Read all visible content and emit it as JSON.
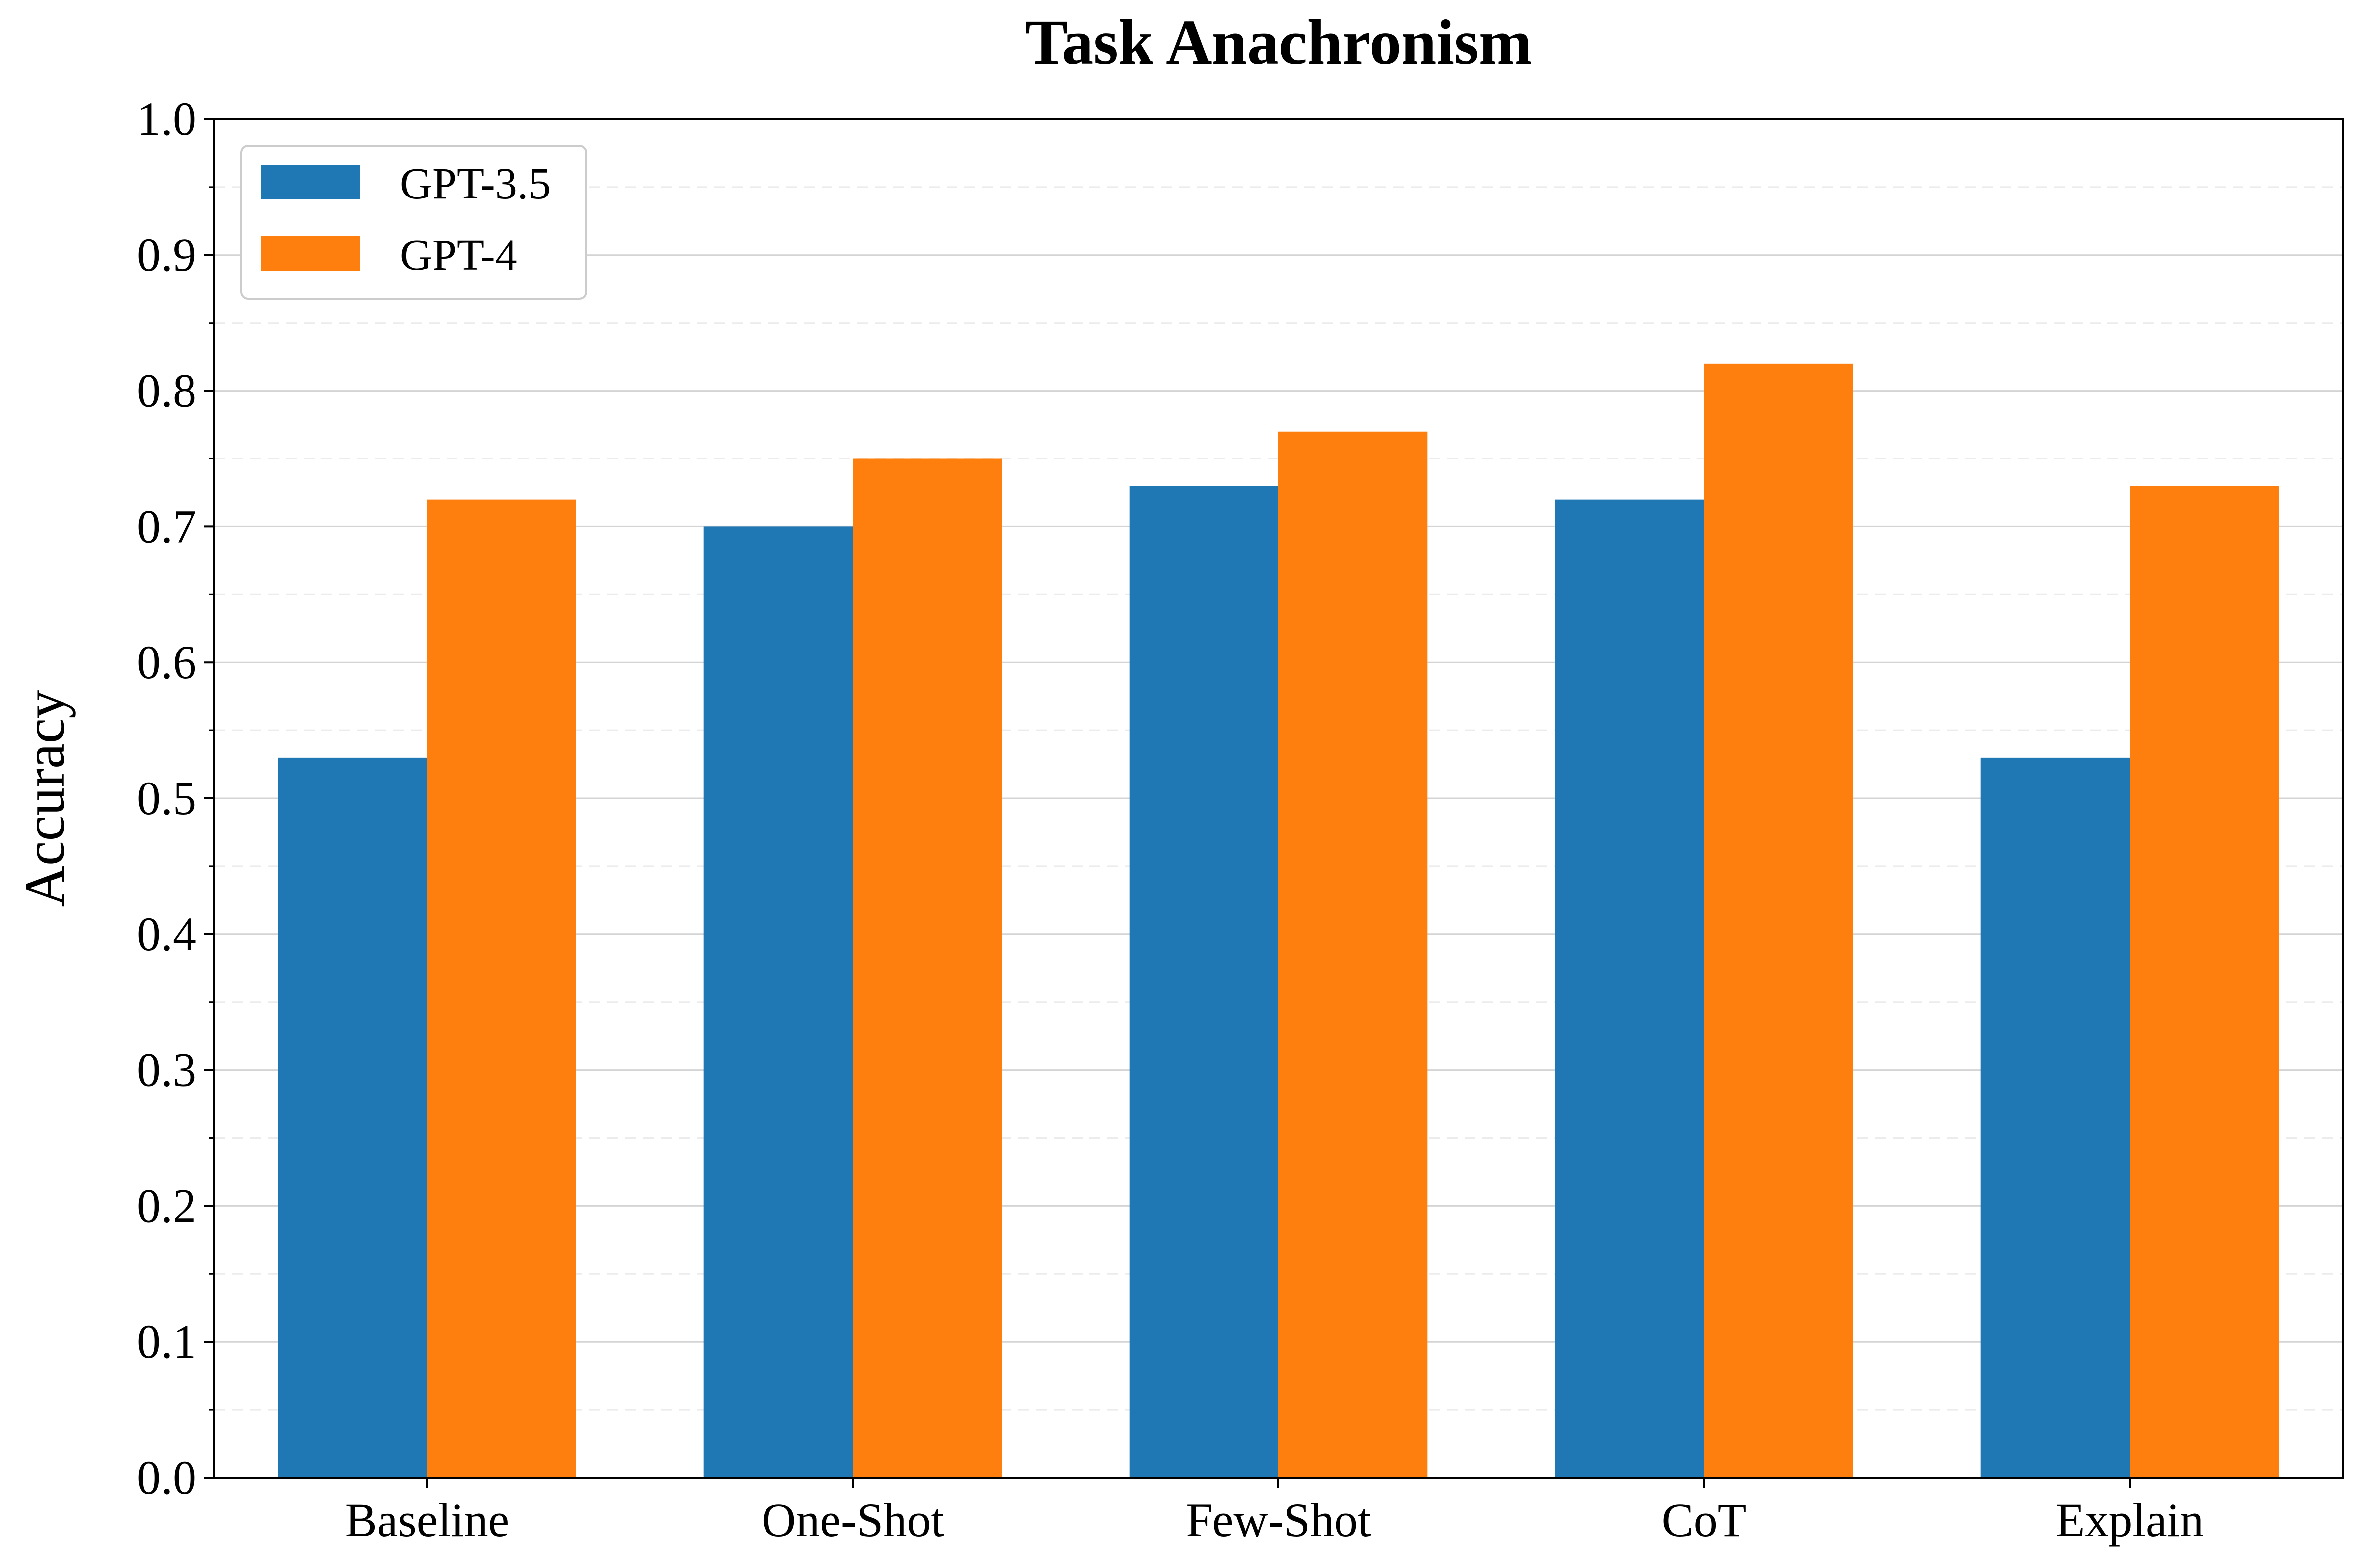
{
  "chart_data": {
    "type": "bar",
    "title": "Task Anachronism",
    "xlabel": "",
    "ylabel": "Accuracy",
    "categories": [
      "Baseline",
      "One-Shot",
      "Few-Shot",
      "CoT",
      "Explain"
    ],
    "series": [
      {
        "name": "GPT-3.5",
        "color": "#1f77b4",
        "values": [
          0.53,
          0.7,
          0.73,
          0.72,
          0.53
        ]
      },
      {
        "name": "GPT-4",
        "color": "#ff7f0e",
        "values": [
          0.72,
          0.75,
          0.77,
          0.82,
          0.73
        ]
      }
    ],
    "ylim": [
      0,
      1.0
    ],
    "yticks": [
      "0.0",
      "0.1",
      "0.2",
      "0.3",
      "0.4",
      "0.5",
      "0.6",
      "0.7",
      "0.8",
      "0.9",
      "1.0"
    ],
    "grid": true,
    "legend_position": "top-left"
  }
}
